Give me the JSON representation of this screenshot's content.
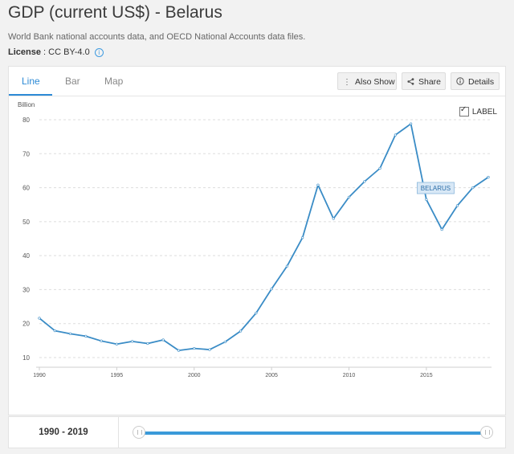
{
  "header": {
    "title": "GDP (current US$) - Belarus",
    "source": "World Bank national accounts data, and OECD National Accounts data files.",
    "license_label": "License",
    "license_sep": " : ",
    "license_value": "CC BY-4.0",
    "info_icon": "i"
  },
  "tabs": [
    {
      "label": "Line",
      "active": true
    },
    {
      "label": "Bar",
      "active": false
    },
    {
      "label": "Map",
      "active": false
    }
  ],
  "toolbar": {
    "also_show": "Also Show",
    "share": "Share",
    "details": "Details"
  },
  "label_toggle": {
    "text": "LABEL",
    "checked": true
  },
  "range": {
    "label": "1990 - 2019",
    "start": 1990,
    "end": 2019
  },
  "colors": {
    "accent": "#2d8ad6",
    "line": "#3a8cc6",
    "grid": "#dddddd"
  },
  "chart_data": {
    "type": "line",
    "ylabel": "Billion",
    "ylim": [
      10,
      80
    ],
    "xlim": [
      1990,
      2019
    ],
    "yticks": [
      10,
      20,
      30,
      40,
      50,
      60,
      70,
      80
    ],
    "xticks": [
      1990,
      1995,
      2000,
      2005,
      2010,
      2015
    ],
    "grid": "horizontal",
    "series": [
      {
        "name": "BELARUS",
        "x": [
          1990,
          1991,
          1992,
          1993,
          1994,
          1995,
          1996,
          1997,
          1998,
          1999,
          2000,
          2001,
          2002,
          2003,
          2004,
          2005,
          2006,
          2007,
          2008,
          2009,
          2010,
          2011,
          2012,
          2013,
          2014,
          2015,
          2016,
          2017,
          2018,
          2019
        ],
        "values": [
          21.6,
          17.9,
          17.0,
          16.3,
          14.9,
          13.97,
          14.76,
          14.13,
          15.2,
          12.1,
          12.7,
          12.35,
          14.6,
          17.8,
          23.1,
          30.2,
          36.9,
          45.3,
          60.8,
          50.9,
          57.2,
          61.8,
          65.7,
          75.5,
          78.8,
          56.5,
          47.7,
          54.7,
          60.0,
          63.1
        ]
      }
    ]
  }
}
